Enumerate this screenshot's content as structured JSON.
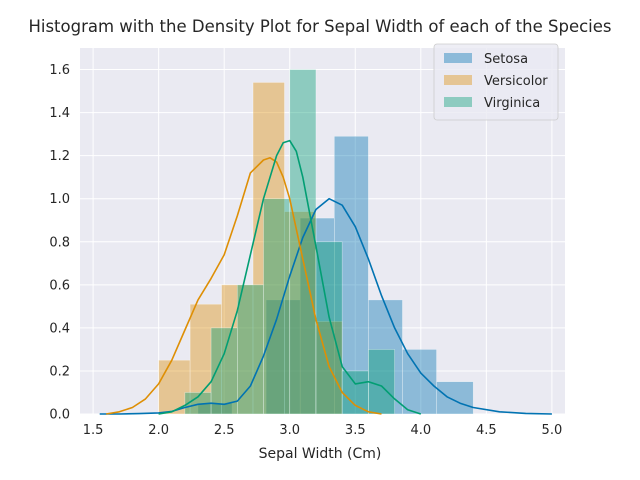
{
  "chart_data": {
    "type": "bar",
    "title": "Histogram with the Density Plot for Sepal Width of each of the Species",
    "xlabel": "Sepal Width (Cm)",
    "ylabel": "",
    "xlim": [
      1.4,
      5.1
    ],
    "ylim": [
      0,
      1.7
    ],
    "xticks": [
      "1.5",
      "2.0",
      "2.5",
      "3.0",
      "3.5",
      "4.0",
      "4.5",
      "5.0"
    ],
    "yticks": [
      "0.0",
      "0.2",
      "0.4",
      "0.6",
      "0.8",
      "1.0",
      "1.2",
      "1.4",
      "1.6"
    ],
    "grid": true,
    "legend_position": "top-right",
    "series": [
      {
        "name": "Setosa",
        "color": "#0173b2",
        "histogram": [
          {
            "x0": 2.3,
            "x1": 2.56,
            "y": 0.05
          },
          {
            "x0": 2.56,
            "x1": 2.82,
            "y": 0.0
          },
          {
            "x0": 2.82,
            "x1": 3.08,
            "y": 0.53
          },
          {
            "x0": 3.08,
            "x1": 3.34,
            "y": 0.91
          },
          {
            "x0": 3.34,
            "x1": 3.6,
            "y": 1.29
          },
          {
            "x0": 3.6,
            "x1": 3.86,
            "y": 0.53
          },
          {
            "x0": 3.86,
            "x1": 4.12,
            "y": 0.3
          },
          {
            "x0": 4.12,
            "x1": 4.4,
            "y": 0.15
          }
        ],
        "density": {
          "x": [
            1.55,
            1.7,
            1.85,
            2.0,
            2.1,
            2.2,
            2.3,
            2.4,
            2.5,
            2.6,
            2.7,
            2.8,
            2.9,
            3.0,
            3.1,
            3.2,
            3.3,
            3.4,
            3.5,
            3.6,
            3.7,
            3.8,
            3.9,
            4.0,
            4.1,
            4.2,
            4.3,
            4.4,
            4.6,
            4.8,
            5.0
          ],
          "y": [
            0.0,
            0.0,
            0.002,
            0.005,
            0.012,
            0.03,
            0.045,
            0.05,
            0.045,
            0.06,
            0.13,
            0.27,
            0.44,
            0.64,
            0.82,
            0.95,
            1.0,
            0.97,
            0.87,
            0.72,
            0.55,
            0.4,
            0.28,
            0.19,
            0.13,
            0.08,
            0.05,
            0.03,
            0.01,
            0.003,
            0.0
          ]
        }
      },
      {
        "name": "Versicolor",
        "color": "#de8f05",
        "histogram": [
          {
            "x0": 2.0,
            "x1": 2.24,
            "y": 0.25
          },
          {
            "x0": 2.24,
            "x1": 2.48,
            "y": 0.51
          },
          {
            "x0": 2.48,
            "x1": 2.72,
            "y": 0.6
          },
          {
            "x0": 2.72,
            "x1": 2.96,
            "y": 1.54
          },
          {
            "x0": 2.96,
            "x1": 3.2,
            "y": 0.94
          },
          {
            "x0": 3.2,
            "x1": 3.4,
            "y": 0.43
          }
        ],
        "density": {
          "x": [
            1.6,
            1.7,
            1.8,
            1.9,
            2.0,
            2.1,
            2.2,
            2.3,
            2.4,
            2.5,
            2.6,
            2.7,
            2.8,
            2.85,
            2.9,
            2.95,
            3.0,
            3.1,
            3.2,
            3.3,
            3.4,
            3.5,
            3.6,
            3.7
          ],
          "y": [
            0.0,
            0.01,
            0.03,
            0.07,
            0.14,
            0.25,
            0.39,
            0.53,
            0.63,
            0.74,
            0.92,
            1.12,
            1.18,
            1.19,
            1.17,
            1.1,
            1.0,
            0.72,
            0.44,
            0.22,
            0.1,
            0.04,
            0.01,
            0.0
          ]
        }
      },
      {
        "name": "Virginica",
        "color": "#029e73",
        "histogram": [
          {
            "x0": 2.2,
            "x1": 2.4,
            "y": 0.1
          },
          {
            "x0": 2.4,
            "x1": 2.6,
            "y": 0.4
          },
          {
            "x0": 2.6,
            "x1": 2.8,
            "y": 0.6
          },
          {
            "x0": 2.8,
            "x1": 3.0,
            "y": 1.0
          },
          {
            "x0": 3.0,
            "x1": 3.2,
            "y": 1.6
          },
          {
            "x0": 3.2,
            "x1": 3.4,
            "y": 0.8
          },
          {
            "x0": 3.4,
            "x1": 3.6,
            "y": 0.2
          },
          {
            "x0": 3.6,
            "x1": 3.8,
            "y": 0.3
          }
        ],
        "density": {
          "x": [
            2.0,
            2.1,
            2.2,
            2.3,
            2.4,
            2.5,
            2.6,
            2.7,
            2.8,
            2.9,
            2.95,
            3.0,
            3.05,
            3.1,
            3.2,
            3.3,
            3.4,
            3.5,
            3.6,
            3.7,
            3.8,
            3.9,
            4.0
          ],
          "y": [
            0.0,
            0.01,
            0.04,
            0.08,
            0.15,
            0.28,
            0.48,
            0.74,
            1.0,
            1.2,
            1.26,
            1.27,
            1.22,
            1.1,
            0.78,
            0.45,
            0.22,
            0.14,
            0.15,
            0.13,
            0.07,
            0.02,
            0.0
          ]
        }
      }
    ]
  }
}
